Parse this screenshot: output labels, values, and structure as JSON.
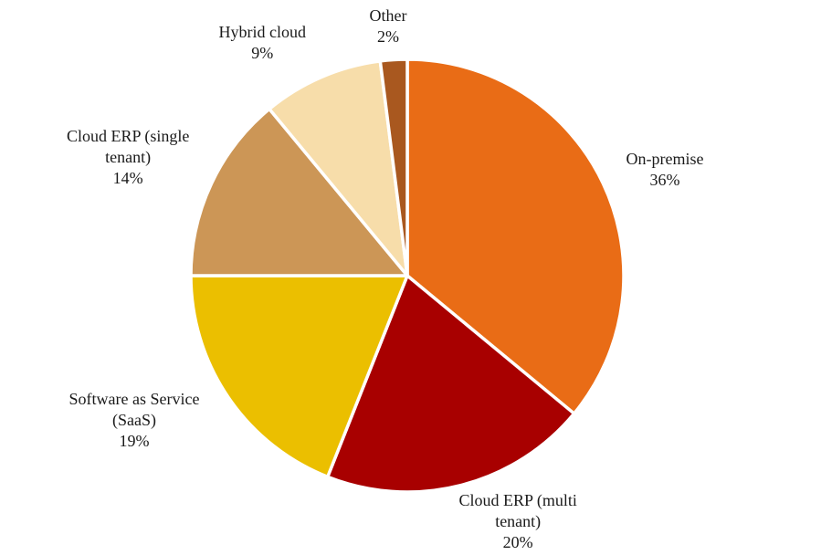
{
  "chart_data": {
    "type": "pie",
    "start_angle_deg": 0,
    "direction": "clockwise",
    "slices": [
      {
        "name": "On-premise",
        "label_lines": [
          "On-premise"
        ],
        "value": 36,
        "value_label": "36%",
        "color": "#E96C16"
      },
      {
        "name": "Cloud ERP (multi tenant)",
        "label_lines": [
          "Cloud ERP (multi",
          "tenant)"
        ],
        "value": 20,
        "value_label": "20%",
        "color": "#A80000"
      },
      {
        "name": "Software as Service (SaaS)",
        "label_lines": [
          "Software as Service",
          "(SaaS)"
        ],
        "value": 19,
        "value_label": "19%",
        "color": "#EBBF00"
      },
      {
        "name": "Cloud ERP (single tenant)",
        "label_lines": [
          "Cloud ERP (single",
          "tenant)"
        ],
        "value": 14,
        "value_label": "14%",
        "color": "#CC9656"
      },
      {
        "name": "Hybrid cloud",
        "label_lines": [
          "Hybrid cloud"
        ],
        "value": 9,
        "value_label": "9%",
        "color": "#F7DDAA"
      },
      {
        "name": "Other",
        "label_lines": [
          "Other"
        ],
        "value": 2,
        "value_label": "2%",
        "color": "#A9581F"
      }
    ],
    "slice_border_color": "#ffffff",
    "legend": "none"
  }
}
